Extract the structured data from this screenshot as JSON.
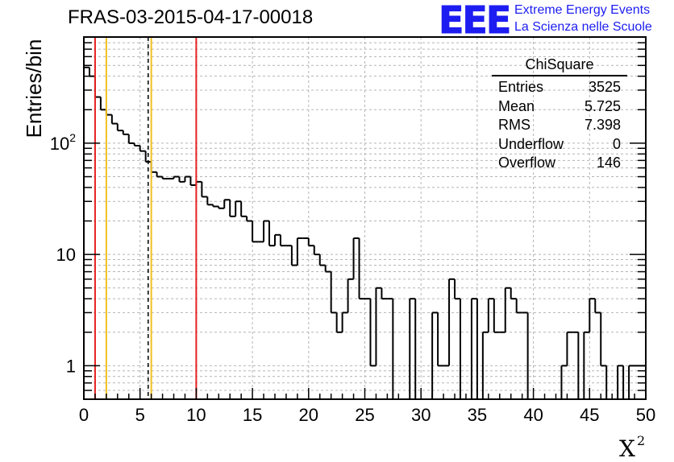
{
  "title": "FRAS-03-2015-04-17-00018",
  "logo": {
    "text": "EEE",
    "line1": "Extreme Energy Events",
    "line2": "La Scienza nelle Scuole",
    "color": "#1d1df2"
  },
  "stats": {
    "title": "ChiSquare",
    "rows": [
      {
        "label": "Entries",
        "value": "3525"
      },
      {
        "label": "Mean",
        "value": "5.725"
      },
      {
        "label": "RMS",
        "value": "7.398"
      },
      {
        "label": "Underflow",
        "value": "0"
      },
      {
        "label": "Overflow",
        "value": "146"
      }
    ]
  },
  "chart_data": {
    "type": "histogram",
    "title": "FRAS-03-2015-04-17-00018",
    "xlabel": "X²",
    "ylabel": "Entries/bin",
    "xlim": [
      0,
      50
    ],
    "ylim": [
      0.5,
      900
    ],
    "yscale": "log",
    "grid": true,
    "bin_width": 0.5,
    "x_ticks": [
      0,
      5,
      10,
      15,
      20,
      25,
      30,
      35,
      40,
      45,
      50
    ],
    "y_ticks": [
      {
        "value": 1,
        "label": "1"
      },
      {
        "value": 10,
        "label": "10"
      },
      {
        "value": 100,
        "label": "10²"
      }
    ],
    "values": [
      480,
      400,
      260,
      200,
      180,
      150,
      130,
      120,
      100,
      95,
      85,
      68,
      55,
      50,
      48,
      48,
      50,
      45,
      50,
      42,
      45,
      33,
      28,
      27,
      26,
      31,
      22,
      30,
      22,
      20,
      13,
      13,
      20,
      12,
      15,
      12,
      12,
      8,
      14,
      14,
      12,
      10,
      8,
      7,
      3,
      2,
      3,
      6,
      14,
      4,
      4,
      1,
      5,
      4,
      4,
      0,
      0,
      0,
      4,
      0,
      0,
      0,
      3,
      1,
      1,
      6,
      4,
      0,
      0,
      4,
      0,
      2,
      4,
      2,
      2,
      5,
      4,
      3,
      3,
      0,
      0,
      0,
      0,
      0,
      0,
      1,
      2,
      2,
      0,
      2,
      4,
      3,
      1,
      0,
      0,
      1,
      0,
      1,
      1,
      1
    ],
    "vertical_lines": [
      {
        "x": 1,
        "color": "#e82020",
        "style": "solid"
      },
      {
        "x": 2,
        "color": "#f0c020",
        "style": "solid"
      },
      {
        "x": 5.725,
        "color": "#000000",
        "style": "dashed"
      },
      {
        "x": 6,
        "color": "#f0c020",
        "style": "solid"
      },
      {
        "x": 10,
        "color": "#e82020",
        "style": "solid"
      }
    ]
  }
}
